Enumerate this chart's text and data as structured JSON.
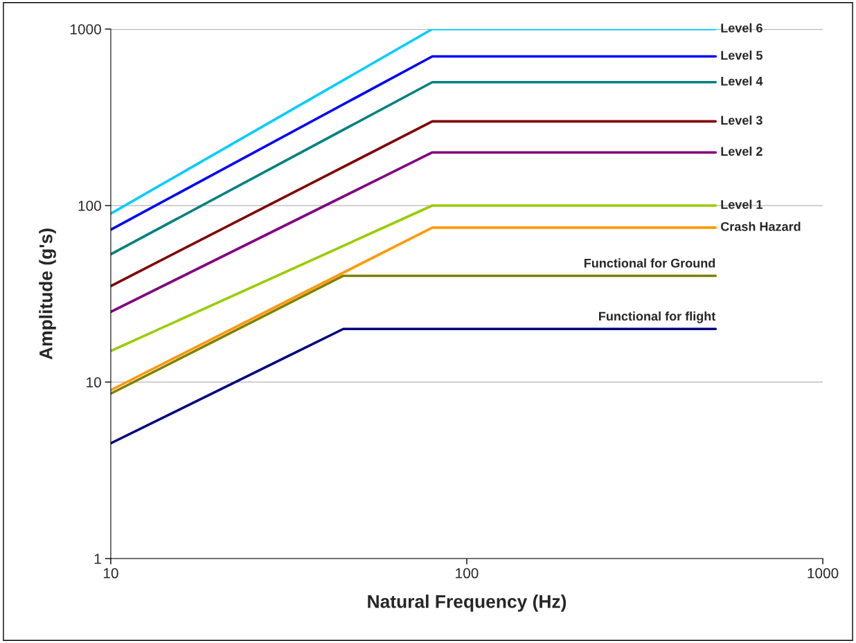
{
  "chart_data": {
    "type": "line",
    "xlabel": "Natural Frequency (Hz)",
    "ylabel": "Amplitude (g's)",
    "log": "xy",
    "xlim": [
      10,
      1000
    ],
    "ylim": [
      1,
      1000
    ],
    "xticks": [
      10,
      100,
      1000
    ],
    "yticks": [
      1,
      10,
      100,
      1000
    ],
    "grid": "y",
    "legend": false,
    "marker": "none",
    "line_style": "solid",
    "series": [
      {
        "name": "Level 6",
        "color": "#00ccff",
        "x": [
          10,
          80,
          500
        ],
        "values": [
          90,
          1000,
          1000
        ]
      },
      {
        "name": "Level 5",
        "color": "#0000ff",
        "x": [
          10,
          80,
          500
        ],
        "values": [
          73,
          700,
          700
        ]
      },
      {
        "name": "Level 4",
        "color": "#008080",
        "x": [
          10,
          80,
          500
        ],
        "values": [
          53,
          500,
          500
        ]
      },
      {
        "name": "Level 3",
        "color": "#800000",
        "x": [
          10,
          80,
          500
        ],
        "values": [
          35,
          300,
          300
        ]
      },
      {
        "name": "Level 2",
        "color": "#800080",
        "x": [
          10,
          80,
          500
        ],
        "values": [
          25,
          200,
          200
        ]
      },
      {
        "name": "Level 1",
        "color": "#99cc00",
        "x": [
          10,
          80,
          500
        ],
        "values": [
          15,
          100,
          100
        ]
      },
      {
        "name": "Crash Hazard",
        "color": "#ff9900",
        "x": [
          10,
          80,
          500
        ],
        "values": [
          9,
          75,
          75
        ]
      },
      {
        "name": "Functional for Ground",
        "color": "#808000",
        "x": [
          10,
          45,
          500
        ],
        "values": [
          8.6,
          40,
          40
        ]
      },
      {
        "name": "Functional for flight",
        "color": "#000080",
        "x": [
          10,
          45,
          500
        ],
        "values": [
          4.5,
          20,
          20
        ]
      }
    ]
  }
}
